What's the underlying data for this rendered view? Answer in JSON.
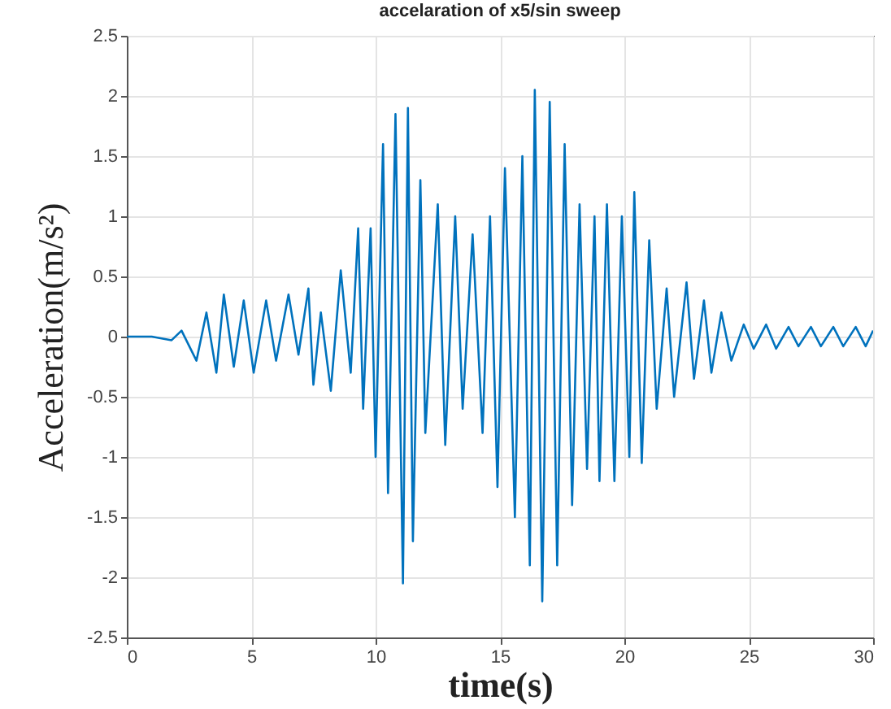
{
  "chart_data": {
    "type": "line",
    "title": "accelaration of x5/sin sweep",
    "xlabel": "time(s)",
    "ylabel": "Acceleration(m/s²)",
    "x": [
      0,
      1,
      1.8,
      2.2,
      2.8,
      3.2,
      3.6,
      3.9,
      4.3,
      4.7,
      5.1,
      5.6,
      6.0,
      6.5,
      6.9,
      7.3,
      7.5,
      7.8,
      8.2,
      8.6,
      9.0,
      9.3,
      9.5,
      9.8,
      10.0,
      10.3,
      10.5,
      10.8,
      11.1,
      11.3,
      11.5,
      11.8,
      12.0,
      12.5,
      12.8,
      13.2,
      13.5,
      13.9,
      14.3,
      14.6,
      14.9,
      15.2,
      15.6,
      15.9,
      16.2,
      16.4,
      16.7,
      17.0,
      17.3,
      17.6,
      17.9,
      18.2,
      18.5,
      18.8,
      19.0,
      19.3,
      19.6,
      19.9,
      20.2,
      20.4,
      20.7,
      21.0,
      21.3,
      21.7,
      22.0,
      22.5,
      22.8,
      23.2,
      23.5,
      23.9,
      24.3,
      24.8,
      25.2,
      25.7,
      26.1,
      26.6,
      27.0,
      27.5,
      27.9,
      28.4,
      28.8,
      29.3,
      29.7,
      30
    ],
    "series": [
      {
        "color": "#0072bd",
        "values": [
          0,
          0,
          -0.03,
          0.05,
          -0.2,
          0.2,
          -0.3,
          0.35,
          -0.25,
          0.3,
          -0.3,
          0.3,
          -0.2,
          0.35,
          -0.15,
          0.4,
          -0.4,
          0.2,
          -0.45,
          0.55,
          -0.3,
          0.9,
          -0.6,
          0.9,
          -1.0,
          1.6,
          -1.3,
          1.85,
          -2.05,
          1.9,
          -1.7,
          1.3,
          -0.8,
          1.1,
          -0.9,
          1.0,
          -0.6,
          0.85,
          -0.8,
          1.0,
          -1.25,
          1.4,
          -1.5,
          1.5,
          -1.9,
          2.05,
          -2.2,
          1.95,
          -1.9,
          1.6,
          -1.4,
          1.1,
          -1.1,
          1.0,
          -1.2,
          1.1,
          -1.2,
          1.0,
          -1.0,
          1.2,
          -1.05,
          0.8,
          -0.6,
          0.4,
          -0.5,
          0.45,
          -0.35,
          0.3,
          -0.3,
          0.2,
          -0.2,
          0.1,
          -0.1,
          0.1,
          -0.1,
          0.08,
          -0.08,
          0.08,
          -0.08,
          0.08,
          -0.08,
          0.08,
          -0.08,
          0.05
        ]
      }
    ],
    "xlim": [
      0,
      30
    ],
    "xticks": [
      0,
      5,
      10,
      15,
      20,
      25,
      30
    ],
    "ylim": [
      -2.5,
      2.5
    ],
    "yticks": [
      -2.5,
      -2,
      -1.5,
      -1,
      -0.5,
      0,
      0.5,
      1,
      1.5,
      2,
      2.5
    ],
    "grid": true
  }
}
